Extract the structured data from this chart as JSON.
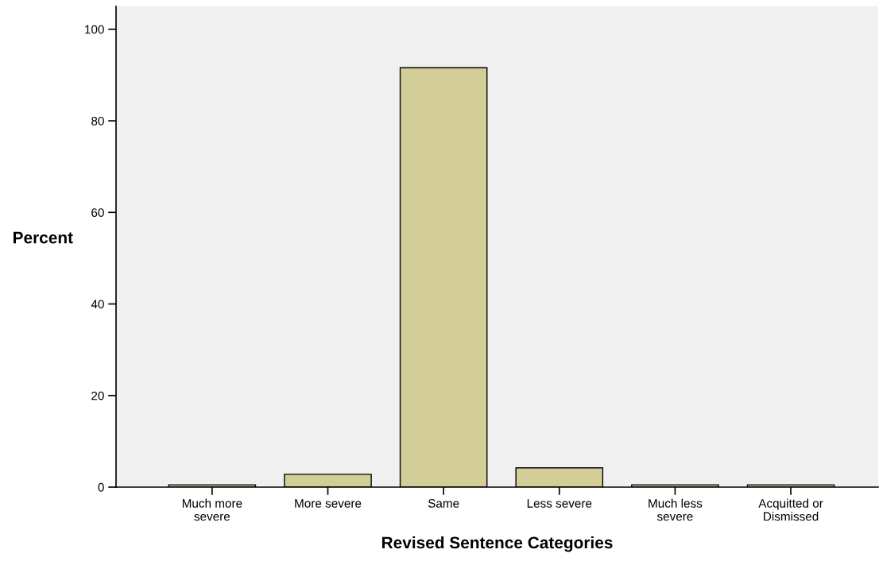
{
  "chart_data": {
    "type": "bar",
    "xlabel": "Revised Sentence Categories",
    "ylabel": "Percent",
    "categories": [
      "Much more\nsevere",
      "More severe",
      "Same",
      "Less severe",
      "Much less\nsevere",
      "Acquitted or\nDismissed"
    ],
    "values": [
      0.5,
      2.8,
      91.6,
      4.2,
      0.5,
      0.5
    ],
    "color": "#d3ce98",
    "ylim": [
      0,
      105
    ],
    "yticks": [
      0,
      20,
      40,
      60,
      80,
      100
    ],
    "grid": false
  }
}
